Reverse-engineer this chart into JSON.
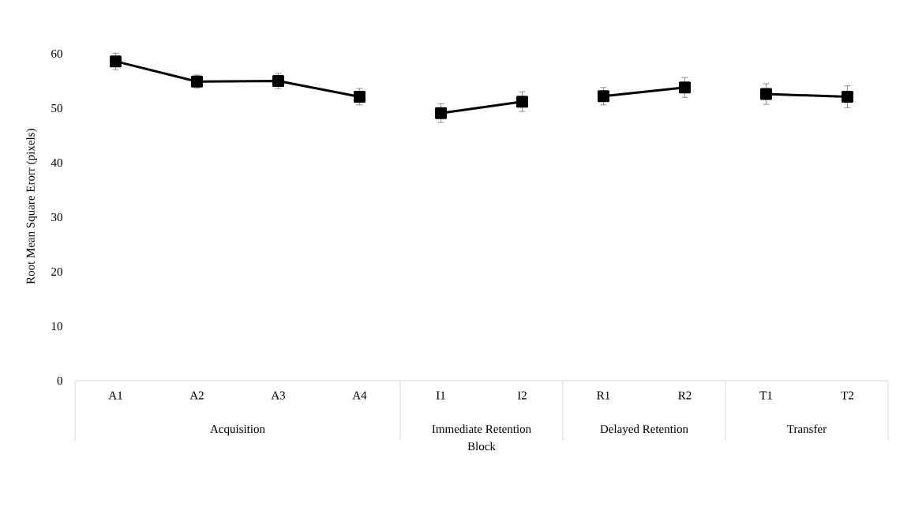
{
  "chart_data": {
    "type": "line",
    "xlabel": "Block",
    "ylabel": "Root Mean Square Erorr (pixels)",
    "categories": [
      "A1",
      "A2",
      "A3",
      "A4",
      "I1",
      "I2",
      "R1",
      "R2",
      "T1",
      "T2"
    ],
    "series": [
      {
        "color": "#000000",
        "values": [
          58.6,
          54.9,
          55.0,
          52.1,
          null,
          null,
          null,
          null,
          null,
          null
        ],
        "errors": [
          1.5,
          1.2,
          1.4,
          1.5,
          null,
          null,
          null,
          null,
          null,
          null
        ]
      },
      {
        "color": "#000000",
        "values": [
          null,
          null,
          null,
          null,
          49.1,
          51.2,
          null,
          null,
          null,
          null
        ],
        "errors": [
          null,
          null,
          null,
          null,
          1.7,
          1.8,
          null,
          null,
          null,
          null
        ]
      },
      {
        "color": "#000000",
        "values": [
          null,
          null,
          null,
          null,
          null,
          null,
          52.2,
          53.8,
          null,
          null
        ],
        "errors": [
          null,
          null,
          null,
          null,
          null,
          null,
          1.6,
          1.8,
          null,
          null
        ]
      },
      {
        "color": "#000000",
        "values": [
          null,
          null,
          null,
          null,
          null,
          null,
          null,
          null,
          52.6,
          52.1
        ],
        "errors": [
          null,
          null,
          null,
          null,
          null,
          null,
          null,
          null,
          1.9,
          2.0
        ]
      }
    ],
    "annotations": [
      "Acquisition",
      "Immediate Retention",
      "Delayed Retention",
      "Transfer"
    ],
    "ylim": [
      0,
      60
    ],
    "yticks": [
      0,
      10,
      20,
      30,
      40,
      50,
      60
    ],
    "marker": "square",
    "line_style": "solid",
    "grid": false
  }
}
